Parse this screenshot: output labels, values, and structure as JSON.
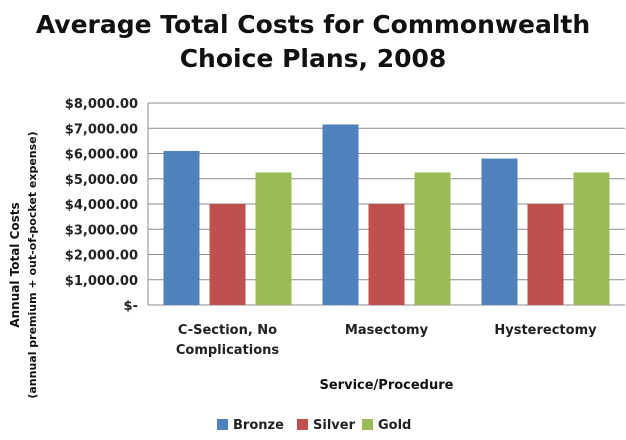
{
  "chart_data": {
    "type": "bar",
    "title_lines": [
      "Average Total Costs for Commonwealth",
      "Choice Plans, 2008"
    ],
    "xlabel": "Service/Procedure",
    "ylabel_lines": [
      "Annual Total Costs",
      "(annual premium + out-of-pocket expense)"
    ],
    "categories": [
      [
        "C-Section, No",
        "Complications"
      ],
      [
        "Masectomy"
      ],
      [
        "Hysterectomy"
      ]
    ],
    "series": [
      {
        "name": "Bronze",
        "color": "#4F81BD",
        "values": [
          6100,
          7150,
          5800
        ]
      },
      {
        "name": "Silver",
        "color": "#C0504D",
        "values": [
          4000,
          4000,
          4000
        ]
      },
      {
        "name": "Gold",
        "color": "#9BBB59",
        "values": [
          5250,
          5250,
          5250
        ]
      }
    ],
    "ylim": [
      0,
      8000
    ],
    "ytick_values": [
      0,
      1000,
      2000,
      3000,
      4000,
      5000,
      6000,
      7000,
      8000
    ],
    "ytick_labels": [
      "$-",
      "$1,000.00",
      "$2,000.00",
      "$3,000.00",
      "$4,000.00",
      "$5,000.00",
      "$6,000.00",
      "$7,000.00",
      "$8,000.00"
    ],
    "grid": true,
    "legend_position": "bottom"
  }
}
